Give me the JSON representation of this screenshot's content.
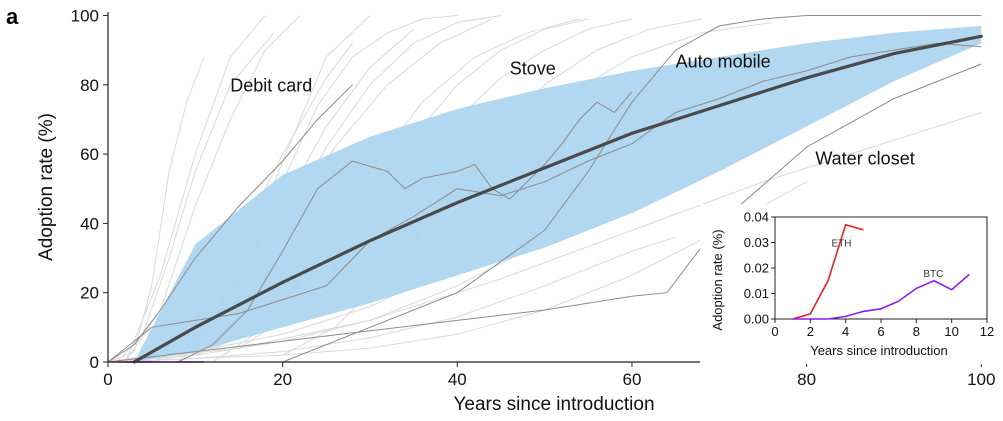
{
  "panel_label": "a",
  "chart_data": [
    {
      "type": "line",
      "xlabel": "Years since introduction",
      "ylabel": "Adoption rate (%)",
      "xlim": [
        0,
        101
      ],
      "ylim": [
        0,
        101
      ],
      "x_ticks": [
        "0",
        "20",
        "40",
        "60",
        "80",
        "100"
      ],
      "y_ticks": [
        "0",
        "20",
        "40",
        "60",
        "80",
        "100"
      ],
      "grid": false,
      "colors": {
        "band": "#a9d3ef",
        "fit": "#4a4a4a",
        "background_curves": "#d9d9d9",
        "highlight_curves": "#8c8c8c"
      },
      "fit_curve": {
        "x": [
          3,
          10,
          20,
          30,
          40,
          50,
          60,
          70,
          80,
          90,
          100
        ],
        "y": [
          0,
          10,
          23,
          35,
          46,
          56,
          66,
          74,
          82,
          89,
          94
        ]
      },
      "band": {
        "x": [
          3,
          10,
          20,
          30,
          40,
          50,
          60,
          70,
          80,
          90,
          100
        ],
        "upper": [
          0,
          34,
          54,
          65,
          73,
          79,
          84,
          88,
          92,
          95,
          97
        ],
        "lower": [
          0,
          3,
          10,
          17,
          25,
          33,
          43,
          55,
          68,
          81,
          92
        ]
      },
      "annotations": [
        {
          "text": "Debit card",
          "x": 14,
          "y": 78
        },
        {
          "text": "Stove",
          "x": 46,
          "y": 83
        },
        {
          "text": "Auto mobile",
          "x": 65,
          "y": 85
        },
        {
          "text": "Water closet",
          "x": 81,
          "y": 57
        }
      ],
      "background_series": [
        {
          "x": [
            0,
            3,
            5,
            7,
            9,
            11
          ],
          "y": [
            0,
            3,
            22,
            55,
            75,
            88
          ]
        },
        {
          "x": [
            1,
            4,
            7,
            10,
            14,
            19
          ],
          "y": [
            0,
            8,
            30,
            55,
            80,
            95
          ]
        },
        {
          "x": [
            2,
            6,
            10,
            14,
            18,
            22
          ],
          "y": [
            0,
            15,
            45,
            70,
            90,
            100
          ]
        },
        {
          "x": [
            0,
            5,
            10,
            15,
            20,
            25,
            28
          ],
          "y": [
            0,
            2,
            12,
            35,
            60,
            82,
            92
          ]
        },
        {
          "x": [
            1,
            5,
            10,
            15,
            20,
            25,
            30,
            35
          ],
          "y": [
            0,
            2,
            8,
            24,
            45,
            68,
            85,
            96
          ]
        },
        {
          "x": [
            5,
            10,
            15,
            20,
            25,
            30
          ],
          "y": [
            0,
            5,
            25,
            58,
            88,
            100
          ]
        },
        {
          "x": [
            3,
            8,
            14,
            20,
            26,
            32,
            38,
            44
          ],
          "y": [
            0,
            3,
            14,
            38,
            62,
            80,
            92,
            99
          ]
        },
        {
          "x": [
            10,
            15,
            20,
            25,
            30,
            35,
            40,
            45,
            50,
            55
          ],
          "y": [
            2,
            8,
            18,
            32,
            50,
            65,
            80,
            90,
            96,
            99
          ]
        },
        {
          "x": [
            5,
            12,
            20,
            28,
            36,
            44,
            52,
            60,
            68,
            76
          ],
          "y": [
            0,
            4,
            12,
            25,
            42,
            60,
            76,
            88,
            95,
            98
          ]
        },
        {
          "x": [
            0,
            10,
            20,
            30,
            40,
            50,
            60,
            70,
            80,
            90,
            100
          ],
          "y": [
            0,
            2,
            6,
            12,
            22,
            35,
            50,
            63,
            75,
            85,
            92
          ]
        },
        {
          "x": [
            0,
            10,
            20,
            30,
            40,
            50,
            60,
            65
          ],
          "y": [
            0,
            1,
            3,
            7,
            13,
            22,
            32,
            36
          ]
        },
        {
          "x": [
            0,
            10,
            20,
            30,
            40,
            50,
            60,
            70,
            80
          ],
          "y": [
            0,
            1,
            2,
            4,
            8,
            15,
            25,
            38,
            52
          ]
        },
        {
          "x": [
            5,
            10,
            15,
            20,
            25,
            30,
            35,
            40,
            45
          ],
          "y": [
            0,
            6,
            18,
            40,
            62,
            80,
            92,
            98,
            100
          ]
        },
        {
          "x": [
            8,
            12,
            16,
            20,
            24,
            28,
            32,
            36,
            40
          ],
          "y": [
            0,
            10,
            28,
            52,
            74,
            88,
            95,
            99,
            100
          ]
        },
        {
          "x": [
            15,
            20,
            25,
            30,
            35,
            40,
            45,
            50,
            55,
            60
          ],
          "y": [
            4,
            12,
            24,
            40,
            56,
            70,
            82,
            90,
            96,
            99
          ]
        },
        {
          "x": [
            20,
            26,
            32,
            38,
            44,
            50,
            56,
            62,
            68
          ],
          "y": [
            2,
            10,
            25,
            45,
            65,
            80,
            90,
            96,
            99
          ]
        },
        {
          "x": [
            0,
            10,
            20,
            30,
            40,
            50,
            60,
            70,
            80,
            90,
            100
          ],
          "y": [
            0,
            3,
            8,
            16,
            28,
            42,
            56,
            68,
            78,
            86,
            92
          ]
        },
        {
          "x": [
            2,
            6,
            10,
            14,
            18
          ],
          "y": [
            0,
            25,
            60,
            88,
            100
          ]
        },
        {
          "x": [
            12,
            18,
            24,
            30,
            36,
            42,
            48,
            54
          ],
          "y": [
            0,
            10,
            30,
            55,
            75,
            88,
            95,
            99
          ]
        },
        {
          "x": [
            0,
            15,
            30,
            45,
            60,
            75,
            90,
            100
          ],
          "y": [
            0,
            4,
            12,
            24,
            38,
            52,
            64,
            72
          ]
        }
      ],
      "highlight_series": [
        {
          "x": [
            0,
            3,
            6,
            10,
            15,
            20,
            24,
            28
          ],
          "y": [
            0,
            5,
            15,
            30,
            45,
            58,
            70,
            80
          ]
        },
        {
          "x": [
            0,
            5,
            10,
            15,
            20,
            25,
            30,
            35,
            40,
            45,
            50,
            55,
            60,
            65,
            70,
            75,
            80,
            85,
            90,
            95,
            100
          ],
          "y": [
            0,
            10,
            12,
            14,
            18,
            22,
            35,
            42,
            50,
            48,
            52,
            58,
            63,
            72,
            76,
            81,
            84,
            88,
            90,
            92,
            91
          ]
        },
        {
          "x": [
            8,
            12,
            16,
            20,
            24,
            28,
            32,
            34,
            36,
            38,
            40,
            42,
            44,
            46,
            48,
            50,
            52,
            54,
            56,
            58,
            60
          ],
          "y": [
            0,
            5,
            15,
            32,
            50,
            58,
            55,
            50,
            53,
            54,
            55,
            57,
            50,
            47,
            52,
            57,
            63,
            70,
            75,
            72,
            78
          ]
        },
        {
          "x": [
            0,
            10,
            20,
            30,
            40,
            50,
            60,
            64,
            70,
            80,
            90,
            100
          ],
          "y": [
            0,
            3,
            6,
            9,
            12,
            15,
            19,
            20,
            40,
            62,
            76,
            86
          ]
        },
        {
          "x": [
            20,
            30,
            40,
            50,
            55,
            60,
            65,
            70,
            75,
            80,
            90,
            100
          ],
          "y": [
            0,
            10,
            20,
            38,
            55,
            75,
            90,
            97,
            99,
            100,
            100,
            100
          ]
        }
      ],
      "crypto_series_near_origin": [
        {
          "name": "ETH",
          "color": "#e8202a",
          "x": [
            1,
            2,
            3,
            4,
            5
          ],
          "y": [
            0,
            0.002,
            0.015,
            0.037,
            0.035
          ]
        },
        {
          "name": "BTC",
          "color": "#8a1cf0",
          "x": [
            2,
            3,
            4,
            5,
            6,
            7,
            8,
            9,
            10,
            11
          ],
          "y": [
            0,
            0,
            0.001,
            0.003,
            0.004,
            0.007,
            0.012,
            0.015,
            0.0115,
            0.0175
          ]
        }
      ]
    },
    {
      "type": "line",
      "title": "",
      "xlabel": "Years since introduction",
      "ylabel": "Adoption rate (%)",
      "xlim": [
        0,
        12
      ],
      "ylim": [
        0,
        0.04
      ],
      "x_ticks": [
        "0",
        "2",
        "4",
        "6",
        "8",
        "10",
        "12"
      ],
      "y_ticks": [
        "0.00",
        "0.01",
        "0.02",
        "0.03",
        "0.04"
      ],
      "grid": false,
      "series": [
        {
          "name": "ETH",
          "color": "#e8202a",
          "label_at": [
            3.2,
            0.0285
          ],
          "x": [
            1,
            2,
            3,
            4,
            5
          ],
          "y": [
            0,
            0.002,
            0.015,
            0.037,
            0.035
          ]
        },
        {
          "name": "BTC",
          "color": "#8a1cf0",
          "label_at": [
            8.4,
            0.0165
          ],
          "x": [
            1,
            2,
            3,
            4,
            5,
            6,
            7,
            8,
            9,
            10,
            11
          ],
          "y": [
            0,
            0,
            0,
            0.001,
            0.003,
            0.004,
            0.007,
            0.012,
            0.015,
            0.0115,
            0.0175
          ]
        }
      ]
    }
  ]
}
